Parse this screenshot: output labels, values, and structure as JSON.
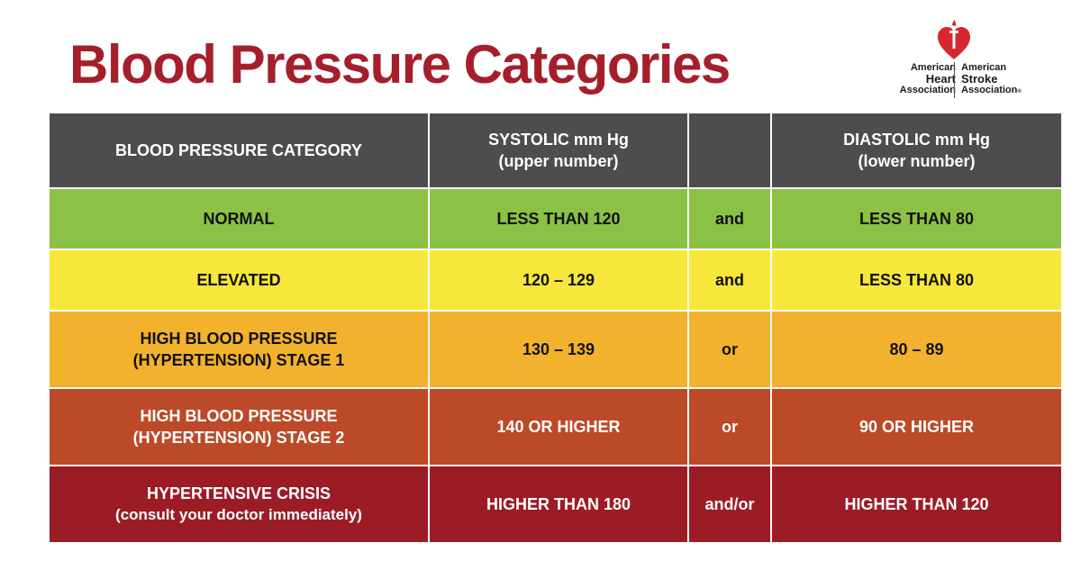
{
  "title": "Blood Pressure Categories",
  "logo": {
    "left_line1": "American",
    "left_line2": "Heart",
    "left_line3": "Association",
    "right_line1": "American",
    "right_line2": "Stroke",
    "right_line3": "Association",
    "registered": "®",
    "heart_color": "#d7282f"
  },
  "table": {
    "headers": {
      "category": "BLOOD PRESSURE CATEGORY",
      "systolic_line1": "SYSTOLIC mm Hg",
      "systolic_line2": "(upper number)",
      "connector": "",
      "diastolic_line1": "DIASTOLIC mm Hg",
      "diastolic_line2": "(lower number)"
    },
    "rows": [
      {
        "category_line1": "NORMAL",
        "category_line2": "",
        "systolic": "LESS THAN 120",
        "connector": "and",
        "diastolic": "LESS THAN 80",
        "color": "#8bc145"
      },
      {
        "category_line1": "ELEVATED",
        "category_line2": "",
        "systolic": "120 – 129",
        "connector": "and",
        "diastolic": "LESS THAN 80",
        "color": "#f7e73a"
      },
      {
        "category_line1": "HIGH BLOOD PRESSURE",
        "category_line2": "(HYPERTENSION) STAGE 1",
        "systolic": "130 – 139",
        "connector": "or",
        "diastolic": "80 – 89",
        "color": "#f3b22d"
      },
      {
        "category_line1": "HIGH BLOOD PRESSURE",
        "category_line2": "(HYPERTENSION) STAGE 2",
        "systolic": "140 OR HIGHER",
        "connector": "or",
        "diastolic": "90 OR HIGHER",
        "color": "#bc4a28"
      },
      {
        "category_line1": "HYPERTENSIVE CRISIS",
        "category_line2": "(consult your doctor immediately)",
        "systolic": "HIGHER THAN 180",
        "connector": "and/or",
        "diastolic": "HIGHER THAN 120",
        "color": "#9b1c25"
      }
    ]
  },
  "colors": {
    "title": "#a51f2b",
    "header_bg": "#4d4d4f"
  }
}
